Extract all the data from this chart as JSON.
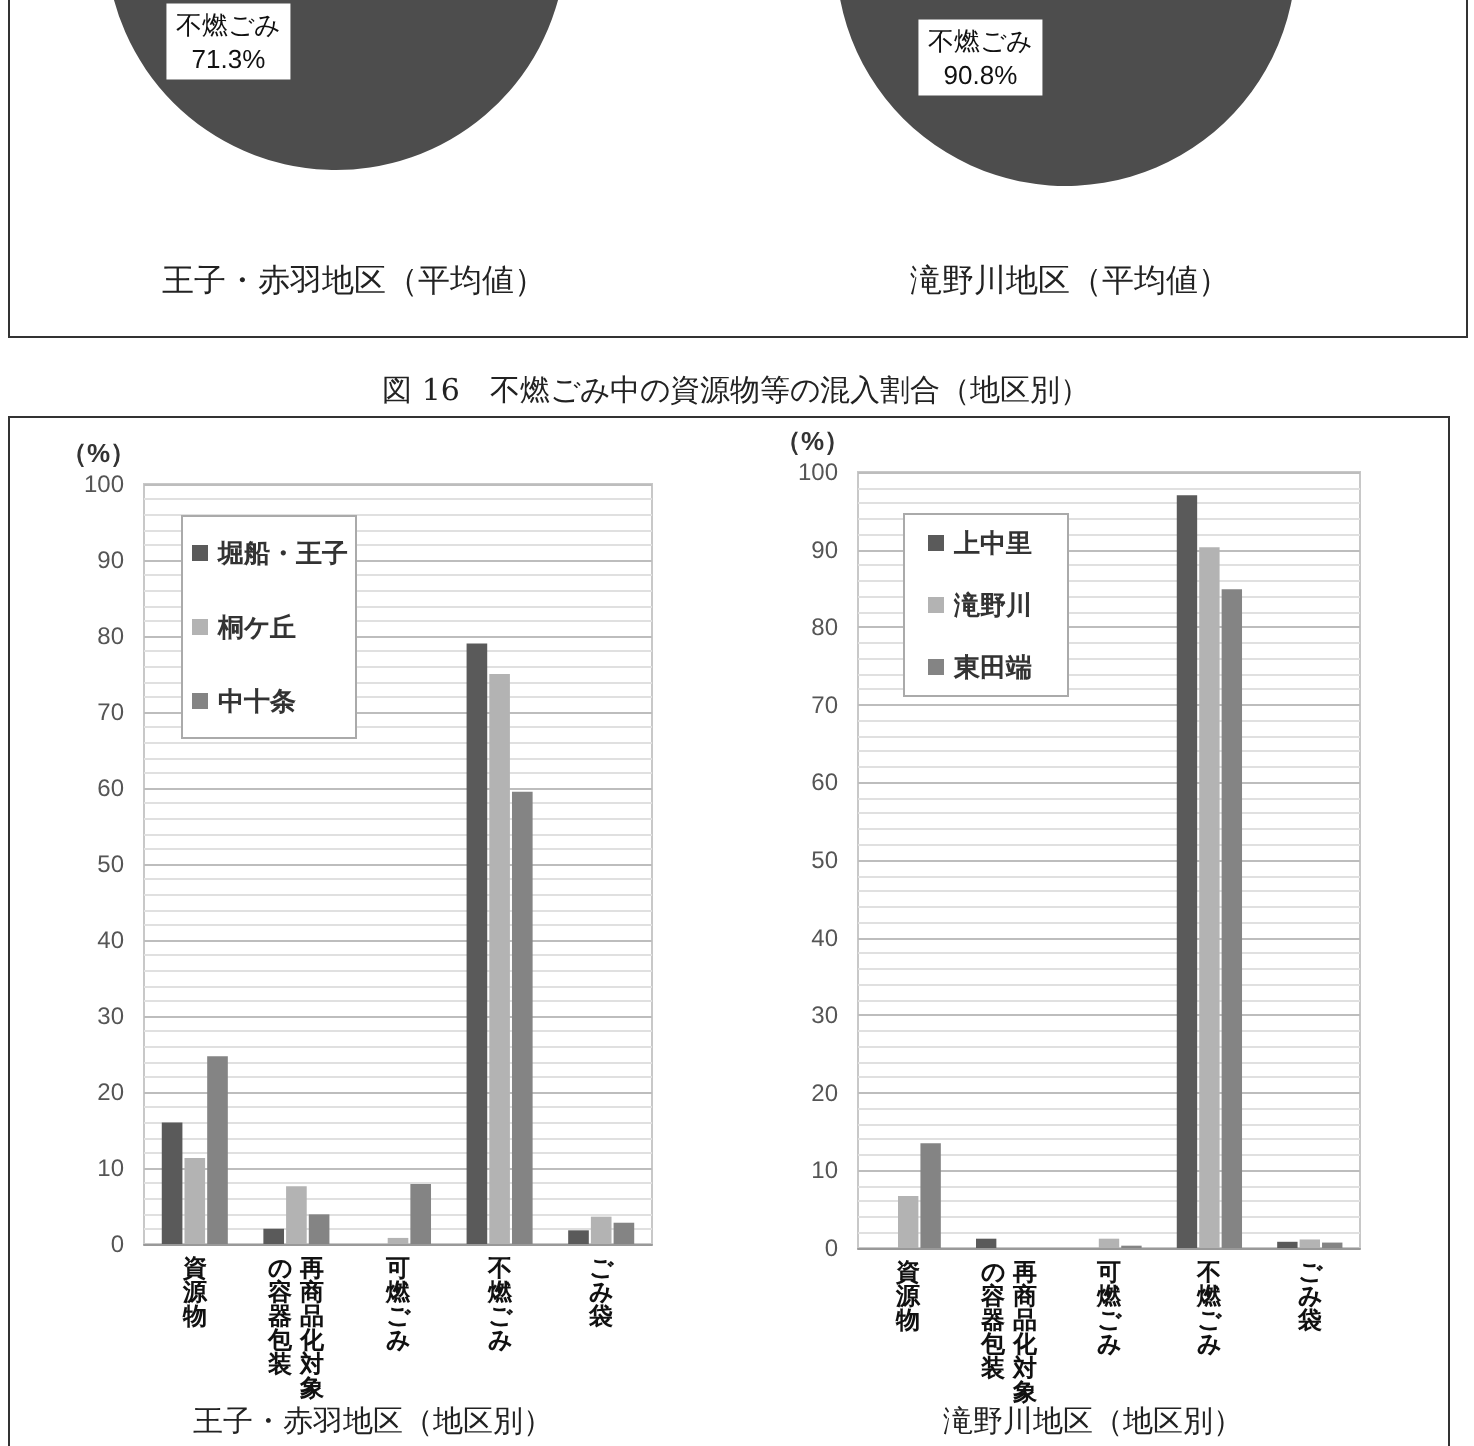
{
  "chart_data": [
    {
      "type": "pie",
      "title": "王子・赤羽地区（平均値）",
      "categories": [
        "不燃ごみ"
      ],
      "values": [
        71.3
      ],
      "value_labels": [
        "71.3%"
      ],
      "colors": [
        "#4d4d4d"
      ]
    },
    {
      "type": "pie",
      "title": "滝野川地区（平均値）",
      "categories": [
        "不燃ごみ"
      ],
      "values": [
        90.8
      ],
      "value_labels": [
        "90.8%"
      ],
      "colors": [
        "#4d4d4d"
      ]
    },
    {
      "type": "bar",
      "title": "王子・赤羽地区（地区別）",
      "ylabel": "（%）",
      "annotations": [
        "図 16　不燃ごみ中の資源物等の混入割合（地区別）"
      ],
      "categories": [
        "資源物",
        "再商品化対象の容器包装",
        "可燃ごみ",
        "不燃ごみ",
        "ごみ袋"
      ],
      "series": [
        {
          "name": "堀船・王子",
          "color": "#5a5a5a",
          "values": [
            16,
            2,
            0,
            79,
            1.8
          ]
        },
        {
          "name": "桐ケ丘",
          "color": "#b3b3b3",
          "values": [
            11.3,
            7.6,
            0.8,
            75,
            3.6
          ]
        },
        {
          "name": "中十条",
          "color": "#848484",
          "values": [
            24.7,
            3.9,
            7.9,
            59.5,
            2.8
          ]
        }
      ],
      "ylim": [
        0,
        100
      ],
      "yticks": [
        0,
        10,
        20,
        30,
        40,
        50,
        60,
        70,
        80,
        90,
        100
      ],
      "grid": true,
      "legend": "top left"
    },
    {
      "type": "bar",
      "title": "滝野川地区（地区別）",
      "ylabel": "（%）",
      "categories": [
        "資源物",
        "再商品化対象の容器包装",
        "可燃ごみ",
        "不燃ごみ",
        "ごみ袋"
      ],
      "series": [
        {
          "name": "上中里",
          "color": "#5a5a5a",
          "values": [
            0,
            1.2,
            0,
            97,
            0.8
          ]
        },
        {
          "name": "滝野川",
          "color": "#b3b3b3",
          "values": [
            6.7,
            0,
            1.2,
            90.3,
            1.1
          ]
        },
        {
          "name": "東田端",
          "color": "#848484",
          "values": [
            13.5,
            0,
            0.3,
            84.9,
            0.7
          ]
        }
      ],
      "ylim": [
        0,
        100
      ],
      "yticks": [
        0,
        10,
        20,
        30,
        40,
        50,
        60,
        70,
        80,
        90,
        100
      ],
      "grid": true,
      "legend": "top left"
    }
  ]
}
